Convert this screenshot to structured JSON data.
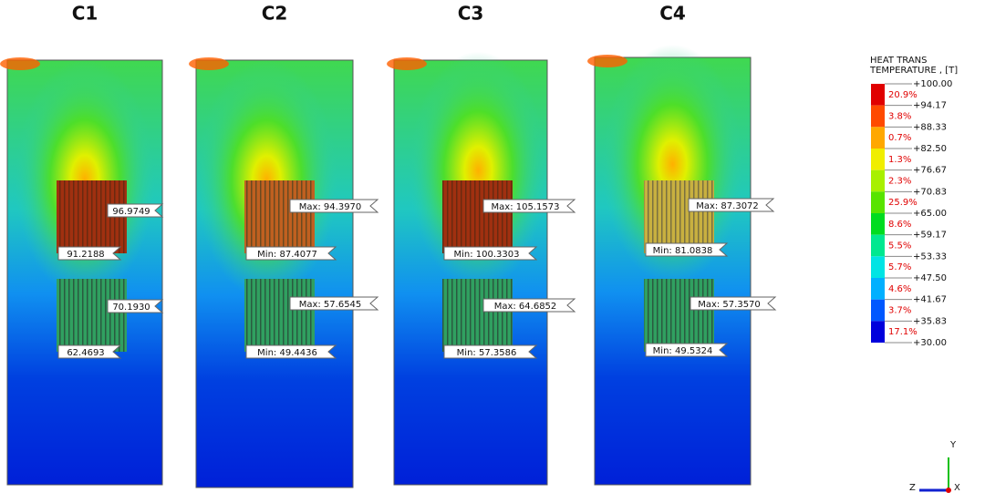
{
  "panels": [
    {
      "title": "C1",
      "labels": [
        "96.9749",
        "91.2188",
        "70.1930",
        "62.4693"
      ]
    },
    {
      "title": "C2",
      "labels": [
        "Max: 94.3970",
        "Min: 87.4077",
        "Max: 57.6545",
        "Min: 49.4436"
      ]
    },
    {
      "title": "C3",
      "labels": [
        "Max: 105.1573",
        "Min: 100.3303",
        "Max: 64.6852",
        "Min: 57.3586"
      ]
    },
    {
      "title": "C4",
      "labels": [
        "Max: 87.3072",
        "Min: 81.0838",
        "Max: 57.3570",
        "Min: 49.5324"
      ]
    }
  ],
  "legend": {
    "title": [
      "HEAT TRANS",
      "TEMPERATURE , [T]"
    ],
    "levels": [
      "+100.00",
      "+94.17",
      "+88.33",
      "+82.50",
      "+76.67",
      "+70.83",
      "+65.00",
      "+59.17",
      "+53.33",
      "+47.50",
      "+41.67",
      "+35.83",
      "+30.00"
    ],
    "bands": [
      {
        "percent": "20.9%",
        "color": "#e00000"
      },
      {
        "percent": "3.8%",
        "color": "#ff4a00"
      },
      {
        "percent": "0.7%",
        "color": "#ffa800"
      },
      {
        "percent": "1.3%",
        "color": "#f0ee00"
      },
      {
        "percent": "2.3%",
        "color": "#a8f000"
      },
      {
        "percent": "25.9%",
        "color": "#58e400"
      },
      {
        "percent": "8.6%",
        "color": "#00dc20"
      },
      {
        "percent": "5.5%",
        "color": "#00e890"
      },
      {
        "percent": "5.7%",
        "color": "#00e4e4"
      },
      {
        "percent": "4.6%",
        "color": "#00b0ff"
      },
      {
        "percent": "3.7%",
        "color": "#0058ff"
      },
      {
        "percent": "17.1%",
        "color": "#0000dc"
      }
    ]
  },
  "triad": [
    "Y",
    "Z",
    "X"
  ]
}
